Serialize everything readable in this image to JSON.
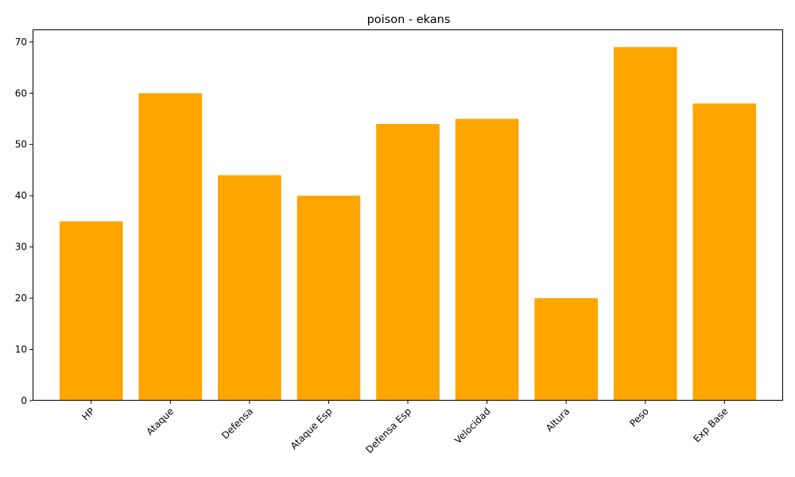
{
  "chart_data": {
    "type": "bar",
    "title": "poison - ekans",
    "xlabel": "",
    "ylabel": "",
    "categories": [
      "HP",
      "Ataque",
      "Defensa",
      "Ataque Esp",
      "Defensa Esp",
      "Velocidad",
      "Altura",
      "Peso",
      "Exp Base"
    ],
    "values": [
      35,
      60,
      44,
      40,
      54,
      55,
      20,
      69,
      58
    ],
    "ylim": [
      0,
      72.45
    ],
    "yticks": [
      0,
      10,
      20,
      30,
      40,
      50,
      60,
      70
    ],
    "bar_color": "#ffa500",
    "grid": false,
    "legend": "none",
    "xtick_rotation": 45
  }
}
